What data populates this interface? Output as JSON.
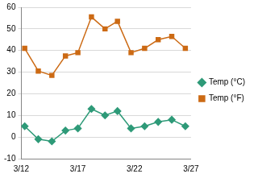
{
  "chart_data": {
    "type": "line",
    "x": [
      12.3,
      13.5,
      14.7,
      15.9,
      17.0,
      18.2,
      19.4,
      20.5,
      21.7,
      22.9,
      24.1,
      25.3,
      26.5
    ],
    "series": [
      {
        "name": "Temp (°C)",
        "color": "#2e9a78",
        "marker": "diamond",
        "line_style": "solid",
        "values": [
          5,
          -1,
          -2,
          3,
          4,
          13,
          10,
          12,
          4,
          5,
          7,
          8,
          5
        ]
      },
      {
        "name": "Temp (°F)",
        "color": "#cc6a14",
        "marker": "square",
        "line_style": "solid",
        "values": [
          41,
          30.5,
          28.5,
          37.5,
          39,
          55.5,
          50,
          53.5,
          39,
          41,
          45,
          46.5,
          41
        ]
      }
    ],
    "xlim": [
      12,
      27
    ],
    "xticks": [
      {
        "value": 12,
        "label": "3/12"
      },
      {
        "value": 17,
        "label": "3/17"
      },
      {
        "value": 22,
        "label": "3/22"
      },
      {
        "value": 27,
        "label": "3/27"
      }
    ],
    "ylim": [
      -10,
      60
    ],
    "yticks": [
      -10,
      0,
      10,
      20,
      30,
      40,
      50,
      60
    ],
    "grid": true,
    "legend": "right"
  }
}
